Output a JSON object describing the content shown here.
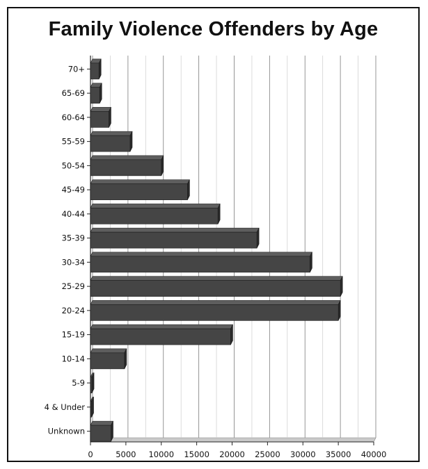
{
  "chart_data": {
    "type": "bar",
    "orientation": "horizontal",
    "title": "Family Violence Offenders by Age",
    "categories": [
      "70+",
      "65-69",
      "60-64",
      "55-59",
      "50-54",
      "45-49",
      "40-44",
      "35-39",
      "30-34",
      "25-29",
      "20-24",
      "15-19",
      "10-14",
      "5-9",
      "4  & Under",
      "Unknown"
    ],
    "values": [
      1200,
      1300,
      2600,
      5600,
      10000,
      13700,
      18000,
      23500,
      31000,
      35300,
      35000,
      19800,
      4800,
      200,
      150,
      2900
    ],
    "xticks": [
      "0",
      "5000",
      "10000",
      "15000",
      "20000",
      "25000",
      "30000",
      "35000",
      "40000"
    ],
    "xlim": [
      0,
      40000
    ],
    "xlabel": "",
    "ylabel": "",
    "grid": true,
    "legend": "none",
    "bar_color": "#454545",
    "bar_side_color": "#2a2a2a",
    "bar_top_color": "#5e5e5e",
    "floor_color": "#c9c9c9"
  }
}
